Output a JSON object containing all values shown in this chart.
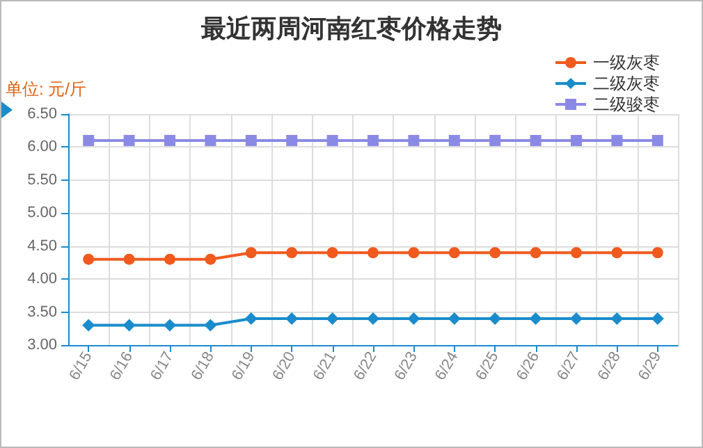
{
  "chart_data": {
    "type": "line",
    "title": "最近两周河南红枣价格走势",
    "ylabel": "单位: 元/斤",
    "categories": [
      "6/15",
      "6/16",
      "6/17",
      "6/18",
      "6/19",
      "6/20",
      "6/21",
      "6/22",
      "6/23",
      "6/24",
      "6/25",
      "6/26",
      "6/27",
      "6/28",
      "6/29"
    ],
    "series": [
      {
        "name": "一级灰枣",
        "color": "#f05a1e",
        "marker": "circle",
        "values": [
          4.3,
          4.3,
          4.3,
          4.3,
          4.4,
          4.4,
          4.4,
          4.4,
          4.4,
          4.4,
          4.4,
          4.4,
          4.4,
          4.4,
          4.4
        ]
      },
      {
        "name": "二级灰枣",
        "color": "#1a8ccc",
        "marker": "diamond",
        "values": [
          3.3,
          3.3,
          3.3,
          3.3,
          3.4,
          3.4,
          3.4,
          3.4,
          3.4,
          3.4,
          3.4,
          3.4,
          3.4,
          3.4,
          3.4
        ]
      },
      {
        "name": "二级骏枣",
        "color": "#8a8ae6",
        "marker": "square",
        "values": [
          6.1,
          6.1,
          6.1,
          6.1,
          6.1,
          6.1,
          6.1,
          6.1,
          6.1,
          6.1,
          6.1,
          6.1,
          6.1,
          6.1,
          6.1
        ]
      }
    ],
    "ylim": [
      3,
      6.5
    ],
    "yticks": [
      {
        "value": 3,
        "label": "3.00"
      },
      {
        "value": 3.5,
        "label": "3.50"
      },
      {
        "value": 4,
        "label": "4.00"
      },
      {
        "value": 4.5,
        "label": "4.50"
      },
      {
        "value": 5,
        "label": "5.00"
      },
      {
        "value": 5.5,
        "label": "5.50"
      },
      {
        "value": 6,
        "label": "6.00"
      },
      {
        "value": 6.5,
        "label": "6.50"
      }
    ],
    "grid": true,
    "legend": "top right",
    "line_style": "solid"
  }
}
